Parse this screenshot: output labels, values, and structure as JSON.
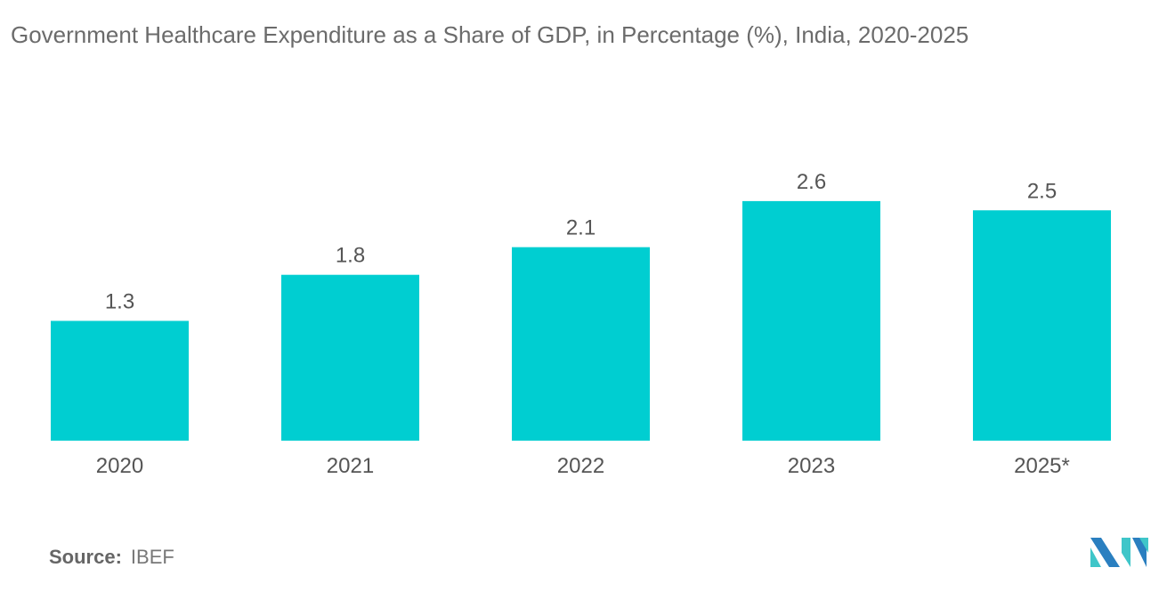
{
  "chart_data": {
    "type": "bar",
    "title": "Government Healthcare Expenditure as a Share of GDP, in Percentage (%), India, 2020-2025",
    "categories": [
      "2020",
      "2021",
      "2022",
      "2023",
      "2025*"
    ],
    "values": [
      1.3,
      1.8,
      2.1,
      2.6,
      2.5
    ],
    "xlabel": "",
    "ylabel": "",
    "ylim": [
      0,
      2.6
    ],
    "grid": false,
    "bar_color": "#00ced1",
    "data_labels": true
  },
  "source": {
    "label": "Source:",
    "value": "IBEF"
  },
  "colors": {
    "logo_dark": "#2a7fc0",
    "logo_light": "#3fc6c9"
  }
}
